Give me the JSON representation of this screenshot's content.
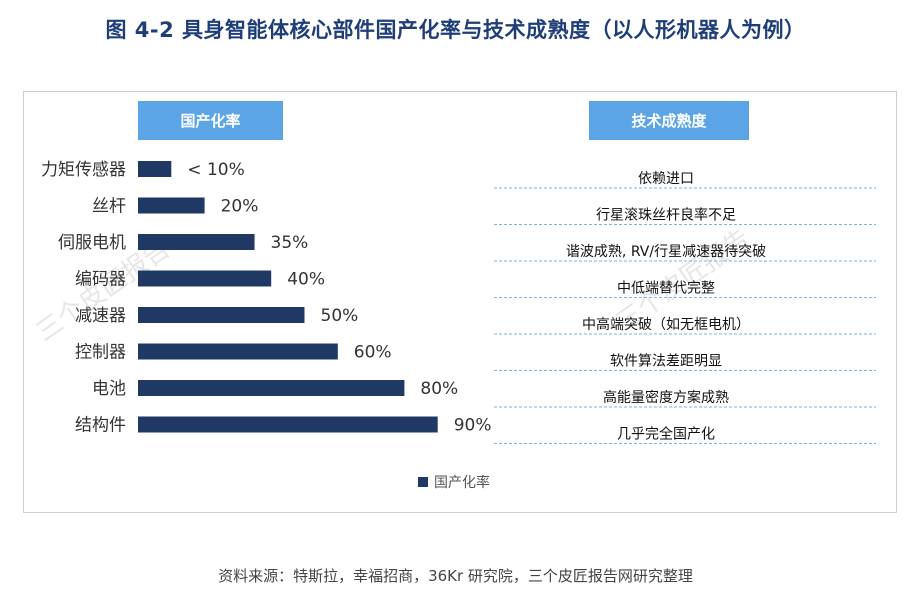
{
  "title": "图 4-2 具身智能体核心部件国产化率与技术成熟度（以人形机器人为例）",
  "source": "资料来源：特斯拉，幸福招商，36Kr 研究院，三个皮匠报告网研究整理",
  "watermark": "三个皮匠报告",
  "headers": {
    "left": "国产化率",
    "right": "技术成熟度"
  },
  "colors": {
    "bar": "#1f3864",
    "header": "#5ba4e6",
    "divider": "#7fb2df",
    "title": "#1f3e78"
  },
  "chart_data": {
    "type": "bar",
    "orientation": "horizontal",
    "title": "具身智能体核心部件国产化率与技术成熟度（以人形机器人为例）",
    "xlabel": "",
    "ylabel": "",
    "xlim": [
      0,
      100
    ],
    "grid": false,
    "legend": {
      "entries": [
        "国产化率"
      ],
      "position": "bottom"
    },
    "categories": [
      "力矩传感器",
      "丝杆",
      "伺服电机",
      "编码器",
      "减速器",
      "控制器",
      "电池",
      "结构件"
    ],
    "series": [
      {
        "name": "国产化率",
        "values": [
          10,
          20,
          35,
          40,
          50,
          60,
          80,
          90
        ]
      }
    ],
    "value_labels": [
      "< 10%",
      "20%",
      "35%",
      "40%",
      "50%",
      "60%",
      "80%",
      "90%"
    ],
    "maturity": [
      "依赖进口",
      "行星滚珠丝杆良率不足",
      "谐波成熟, RV/行星减速器待突破",
      "中低端替代完整",
      "中高端突破（如无框电机）",
      "软件算法差距明显",
      "高能量密度方案成熟",
      "几乎完全国产化"
    ]
  }
}
